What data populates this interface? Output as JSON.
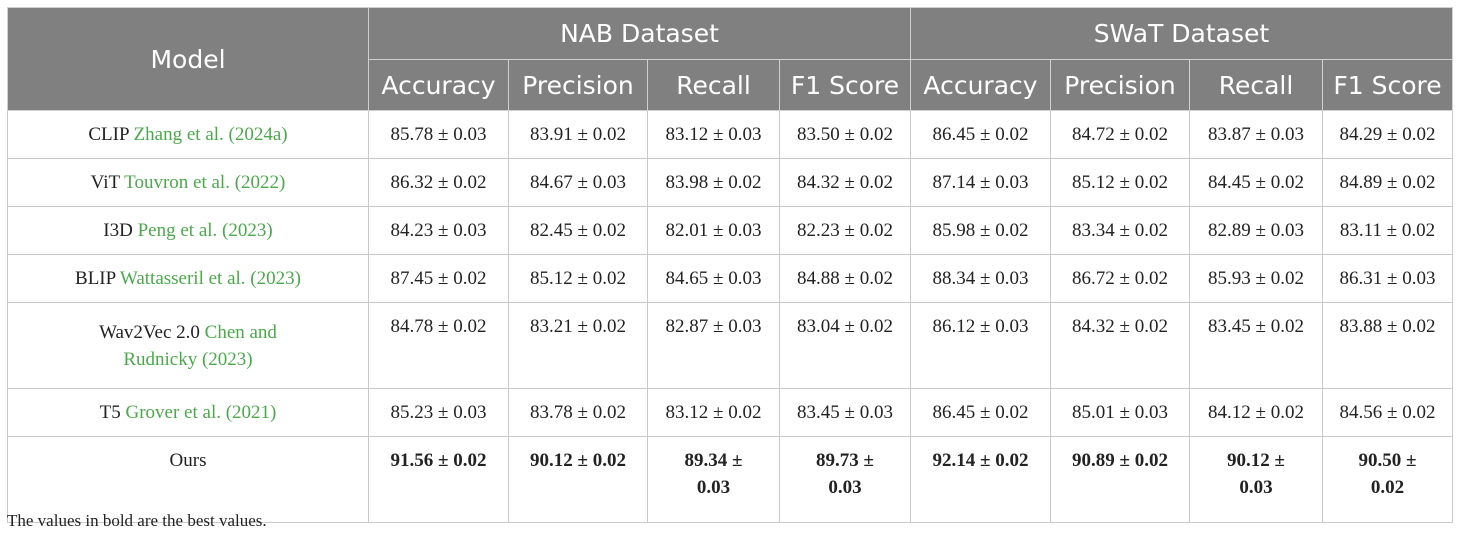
{
  "table": {
    "header": {
      "model": "Model",
      "groups": [
        "NAB Dataset",
        "SWaT Dataset"
      ],
      "metrics": [
        "Accuracy",
        "Precision",
        "Recall",
        "F1 Score",
        "Accuracy",
        "Precision",
        "Recall",
        "F1 Score"
      ]
    },
    "rows": [
      {
        "model": "CLIP",
        "ref": "Zhang et al. (2024a)",
        "values": [
          "85.78 ± 0.03",
          "83.91 ± 0.02",
          "83.12 ± 0.03",
          "83.50 ± 0.02",
          "86.45 ± 0.02",
          "84.72 ± 0.02",
          "83.87 ± 0.03",
          "84.29 ± 0.02"
        ]
      },
      {
        "model": "ViT",
        "ref": "Touvron et al. (2022)",
        "values": [
          "86.32 ± 0.02",
          "84.67 ± 0.03",
          "83.98 ± 0.02",
          "84.32 ± 0.02",
          "87.14 ± 0.03",
          "85.12 ± 0.02",
          "84.45 ± 0.02",
          "84.89 ± 0.02"
        ]
      },
      {
        "model": "I3D",
        "ref": "Peng et al. (2023)",
        "values": [
          "84.23 ± 0.03",
          "82.45 ± 0.02",
          "82.01 ± 0.03",
          "82.23 ± 0.02",
          "85.98 ± 0.02",
          "83.34 ± 0.02",
          "82.89 ± 0.03",
          "83.11 ± 0.02"
        ]
      },
      {
        "model": "BLIP",
        "ref": "Wattasseril et al. (2023)",
        "values": [
          "87.45 ± 0.02",
          "85.12 ± 0.02",
          "84.65 ± 0.03",
          "84.88 ± 0.02",
          "88.34 ± 0.03",
          "86.72 ± 0.02",
          "85.93 ± 0.02",
          "86.31 ± 0.03"
        ]
      },
      {
        "model": "Wav2Vec 2.0",
        "ref": "Chen and Rudnicky (2023)",
        "values": [
          "84.78 ± 0.02",
          "83.21 ± 0.02",
          "82.87 ± 0.03",
          "83.04 ± 0.02",
          "86.12 ± 0.03",
          "84.32 ± 0.02",
          "83.45 ± 0.02",
          "83.88 ± 0.02"
        ]
      },
      {
        "model": "T5",
        "ref": "Grover et al. (2021)",
        "values": [
          "85.23 ± 0.03",
          "83.78 ± 0.02",
          "83.12 ± 0.02",
          "83.45 ± 0.03",
          "86.45 ± 0.02",
          "85.01 ± 0.03",
          "84.12 ± 0.02",
          "84.56 ± 0.02"
        ]
      }
    ],
    "ours": {
      "model": "Ours",
      "values": [
        "91.56 ± 0.02",
        "90.12 ± 0.02",
        "89.34 ± 0.03",
        "89.73 ± 0.03",
        "92.14 ± 0.02",
        "90.89 ± 0.02",
        "90.12 ± 0.03",
        "90.50 ± 0.02"
      ]
    }
  },
  "footnote": "The values in bold are the best values."
}
